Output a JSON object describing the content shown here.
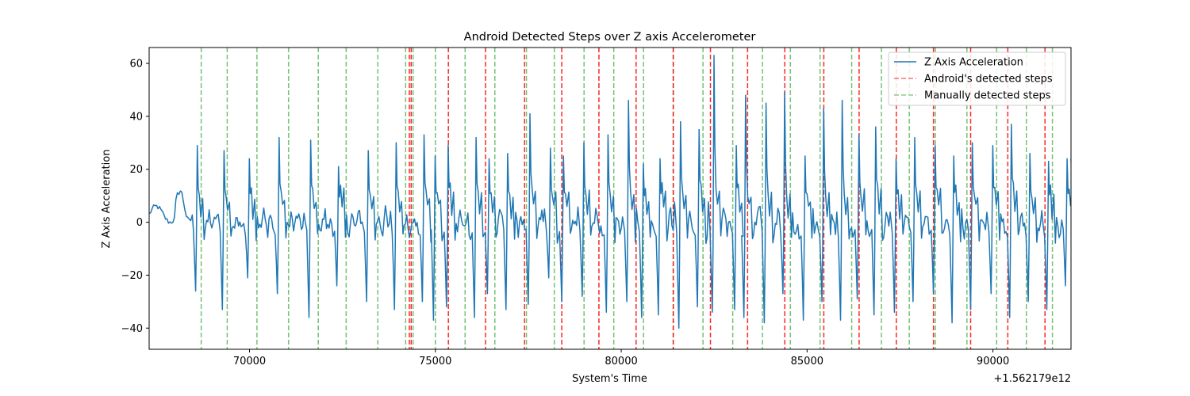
{
  "chart_data": {
    "type": "line",
    "title": "Android Detected Steps over Z axis Accelerometer",
    "xlabel": "System's Time",
    "ylabel": "Z Axis Acceleration",
    "x_offset_label": "+1.562179e12",
    "xlim": [
      67300,
      92100
    ],
    "ylim": [
      -48,
      66
    ],
    "x_ticks": [
      70000,
      75000,
      80000,
      85000,
      90000
    ],
    "y_ticks": [
      -40,
      -20,
      0,
      20,
      40,
      60
    ],
    "legend_position": "top-right",
    "legend": [
      {
        "label": "Z Axis Acceleration",
        "style": "solid",
        "color": "#1f77b4"
      },
      {
        "label": "Android's detected steps",
        "style": "dashed",
        "color": "#ff0000"
      },
      {
        "label": "Manually detected steps",
        "style": "dashed",
        "color": "#2ca02c"
      }
    ],
    "series": [
      {
        "name": "Z Axis Acceleration",
        "color": "#1f77b4",
        "step_times": [
          68550,
          69270,
          69950,
          70750,
          71600,
          72350,
          73150,
          73900,
          74650,
          74950,
          75300,
          76050,
          76400,
          76900,
          77500,
          78050,
          78400,
          78950,
          79600,
          80150,
          80550,
          81000,
          81550,
          82050,
          82450,
          83050,
          83300,
          83850,
          84350,
          84900,
          85400,
          85900,
          86350,
          86800,
          87350,
          87850,
          88400,
          88900,
          89400,
          89950,
          90450,
          90950,
          91450,
          91950
        ],
        "peaks": [
          29,
          27,
          24,
          32,
          31,
          21,
          27,
          30,
          33,
          25,
          29,
          32,
          24,
          26,
          41,
          28,
          25,
          30,
          33,
          46,
          22,
          24,
          38,
          35,
          63,
          29,
          48,
          45,
          49,
          25,
          43,
          46,
          33,
          36,
          24,
          32,
          29,
          25,
          30,
          29,
          37,
          26,
          23,
          24
        ],
        "troughs": [
          -26,
          -33,
          -21,
          -27,
          -36,
          -24,
          -30,
          -33,
          -30,
          -37,
          -32,
          -36,
          -27,
          -33,
          -31,
          -21,
          -30,
          -28,
          -34,
          -30,
          -36,
          -35,
          -40,
          -32,
          -34,
          -33,
          -36,
          -38,
          -27,
          -37,
          -30,
          -37,
          -29,
          -35,
          -34,
          -30,
          -27,
          -38,
          -33,
          -27,
          -36,
          -30,
          -33,
          -24
        ]
      }
    ],
    "android_steps": [
      74300,
      74350,
      75350,
      76350,
      77400,
      78400,
      79400,
      80400,
      81400,
      82400,
      83400,
      84400,
      85450,
      86400,
      87400,
      88400,
      89400,
      90400,
      91400
    ],
    "manual_steps": [
      68700,
      69400,
      70200,
      71050,
      71850,
      72600,
      73450,
      74200,
      74400,
      75000,
      75800,
      76600,
      77450,
      78200,
      79000,
      79800,
      80600,
      81400,
      82200,
      83000,
      83800,
      84550,
      85350,
      86200,
      87000,
      87750,
      88450,
      89300,
      90100,
      90900,
      91600
    ]
  }
}
